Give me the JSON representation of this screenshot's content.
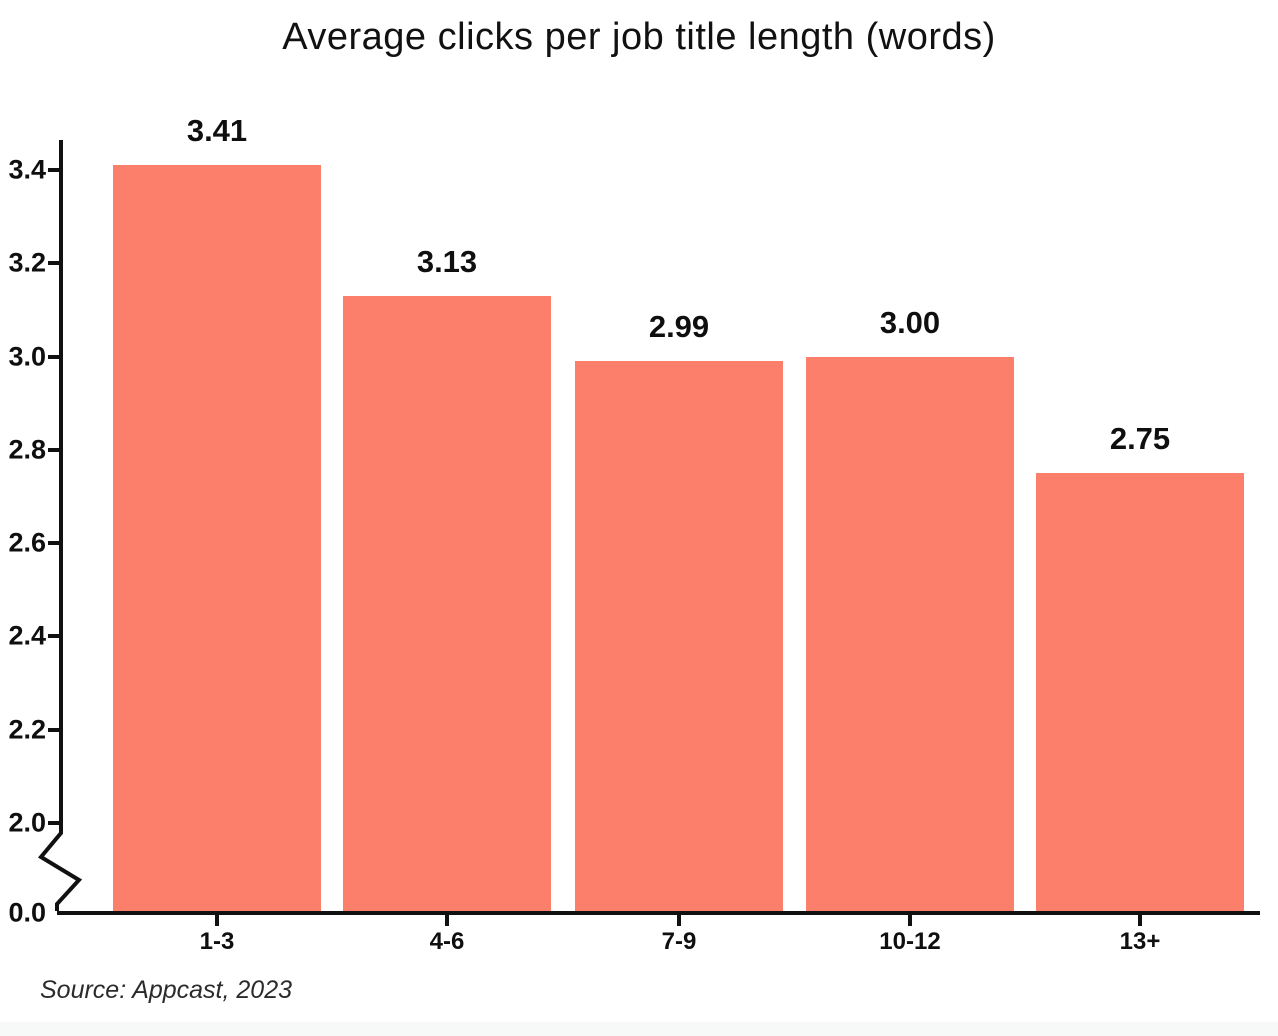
{
  "title": "Average clicks per job title length (words)",
  "source": "Source: Appcast, 2023",
  "chart_data": {
    "type": "bar",
    "title": "Average clicks per job title length (words)",
    "categories": [
      "1-3",
      "4-6",
      "7-9",
      "10-12",
      "13+"
    ],
    "values": [
      3.41,
      3.13,
      2.99,
      3.0,
      2.75
    ],
    "value_labels": [
      "3.41",
      "3.13",
      "2.99",
      "3.00",
      "2.75"
    ],
    "xlabel": "",
    "ylabel": "",
    "ytick_labels": [
      "3.4",
      "3.2",
      "3.0",
      "2.8",
      "2.6",
      "2.4",
      "2.2",
      "2.0",
      "0.0"
    ],
    "ytick_values": [
      3.4,
      3.2,
      3.0,
      2.8,
      2.6,
      2.4,
      2.2,
      2.0,
      0.0
    ],
    "ylim_display": [
      0.0,
      3.4
    ],
    "axis_break": {
      "between": [
        0.0,
        2.0
      ]
    },
    "grid": false,
    "legend": false,
    "bar_color": "#FC7F6C",
    "source": "Source: Appcast, 2023"
  },
  "colors": {
    "bar": "#FC7F6C",
    "axis": "#111111",
    "text": "#0f0f0f",
    "source_text": "#2b2b2b",
    "background": "#ffffff",
    "bottom_strip": "#f7f8f8"
  }
}
